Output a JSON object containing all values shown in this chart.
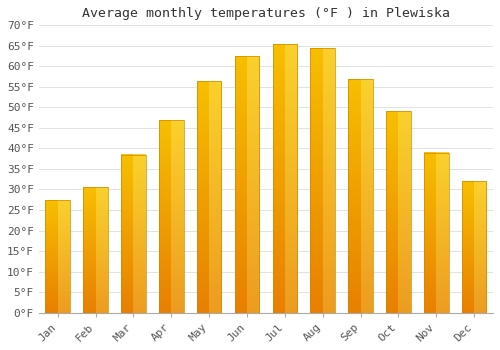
{
  "title": "Average monthly temperatures (°F ) in Plewiska",
  "months": [
    "Jan",
    "Feb",
    "Mar",
    "Apr",
    "May",
    "Jun",
    "Jul",
    "Aug",
    "Sep",
    "Oct",
    "Nov",
    "Dec"
  ],
  "values": [
    27.5,
    30.5,
    38.5,
    47.0,
    56.5,
    62.5,
    65.5,
    64.5,
    57.0,
    49.0,
    39.0,
    32.0
  ],
  "bar_color_top": "#FFC020",
  "bar_color_bottom": "#E88000",
  "bar_color_mid": "#FFB800",
  "background_color": "#FFFFFF",
  "grid_color": "#DDDDDD",
  "ylim": [
    0,
    70
  ],
  "yticks": [
    0,
    5,
    10,
    15,
    20,
    25,
    30,
    35,
    40,
    45,
    50,
    55,
    60,
    65,
    70
  ],
  "ytick_labels": [
    "0°F",
    "5°F",
    "10°F",
    "15°F",
    "20°F",
    "25°F",
    "30°F",
    "35°F",
    "40°F",
    "45°F",
    "50°F",
    "55°F",
    "60°F",
    "65°F",
    "70°F"
  ],
  "title_fontsize": 9.5,
  "tick_fontsize": 8
}
